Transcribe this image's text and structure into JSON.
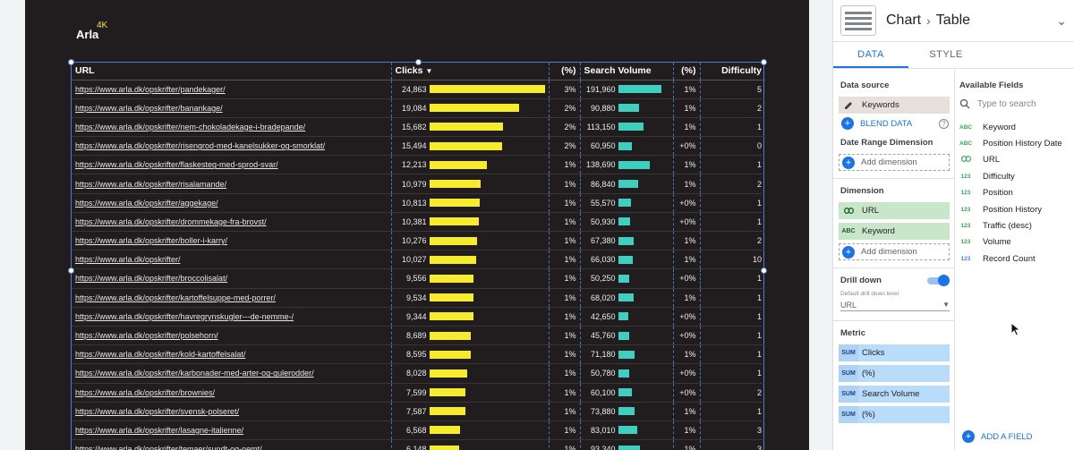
{
  "report": {
    "brand": "Arla",
    "brand_sup": "4K"
  },
  "table": {
    "headers": {
      "url": "URL",
      "clicks": "Clicks",
      "clicks_pct": "(%)",
      "search_volume": "Search Volume",
      "sv_pct": "(%)",
      "difficulty": "Difficulty"
    },
    "rows": [
      {
        "url": "https://www.arla.dk/opskrifter/pandekager/",
        "clicks": "24,863",
        "clicks_bar": 1.0,
        "clicks_pct": "3%",
        "search_volume": "191,960",
        "sv_bar": 1.0,
        "sv_pct": "1%",
        "difficulty": "5"
      },
      {
        "url": "https://www.arla.dk/opskrifter/banankage/",
        "clicks": "19,084",
        "clicks_bar": 0.77,
        "clicks_pct": "2%",
        "search_volume": "90,880",
        "sv_bar": 0.47,
        "sv_pct": "1%",
        "difficulty": "2"
      },
      {
        "url": "https://www.arla.dk/opskrifter/nem-chokoladekage-i-bradepande/",
        "clicks": "15,682",
        "clicks_bar": 0.63,
        "clicks_pct": "2%",
        "search_volume": "113,150",
        "sv_bar": 0.59,
        "sv_pct": "1%",
        "difficulty": "1"
      },
      {
        "url": "https://www.arla.dk/opskrifter/risengrod-med-kanelsukker-og-smorklat/",
        "clicks": "15,494",
        "clicks_bar": 0.62,
        "clicks_pct": "2%",
        "search_volume": "60,950",
        "sv_bar": 0.32,
        "sv_pct": "+0%",
        "difficulty": "0"
      },
      {
        "url": "https://www.arla.dk/opskrifter/flaskesteg-med-sprod-svar/",
        "clicks": "12,213",
        "clicks_bar": 0.49,
        "clicks_pct": "1%",
        "search_volume": "138,690",
        "sv_bar": 0.72,
        "sv_pct": "1%",
        "difficulty": "1"
      },
      {
        "url": "https://www.arla.dk/opskrifter/risalamande/",
        "clicks": "10,979",
        "clicks_bar": 0.44,
        "clicks_pct": "1%",
        "search_volume": "86,840",
        "sv_bar": 0.45,
        "sv_pct": "1%",
        "difficulty": "2"
      },
      {
        "url": "https://www.arla.dk/opskrifter/aggekage/",
        "clicks": "10,813",
        "clicks_bar": 0.43,
        "clicks_pct": "1%",
        "search_volume": "55,570",
        "sv_bar": 0.29,
        "sv_pct": "+0%",
        "difficulty": "1"
      },
      {
        "url": "https://www.arla.dk/opskrifter/drommekage-fra-brovst/",
        "clicks": "10,381",
        "clicks_bar": 0.42,
        "clicks_pct": "1%",
        "search_volume": "50,930",
        "sv_bar": 0.27,
        "sv_pct": "+0%",
        "difficulty": "1"
      },
      {
        "url": "https://www.arla.dk/opskrifter/boller-i-karry/",
        "clicks": "10,276",
        "clicks_bar": 0.41,
        "clicks_pct": "1%",
        "search_volume": "67,380",
        "sv_bar": 0.35,
        "sv_pct": "1%",
        "difficulty": "2"
      },
      {
        "url": "https://www.arla.dk/opskrifter/",
        "clicks": "10,027",
        "clicks_bar": 0.4,
        "clicks_pct": "1%",
        "search_volume": "66,030",
        "sv_bar": 0.34,
        "sv_pct": "1%",
        "difficulty": "10"
      },
      {
        "url": "https://www.arla.dk/opskrifter/broccolisalat/",
        "clicks": "9,556",
        "clicks_bar": 0.38,
        "clicks_pct": "1%",
        "search_volume": "50,250",
        "sv_bar": 0.26,
        "sv_pct": "+0%",
        "difficulty": "1"
      },
      {
        "url": "https://www.arla.dk/opskrifter/kartoffelsuppe-med-porrer/",
        "clicks": "9,534",
        "clicks_bar": 0.38,
        "clicks_pct": "1%",
        "search_volume": "68,020",
        "sv_bar": 0.35,
        "sv_pct": "1%",
        "difficulty": "1"
      },
      {
        "url": "https://www.arla.dk/opskrifter/havregrynskugler---de-nemme-/",
        "clicks": "9,344",
        "clicks_bar": 0.38,
        "clicks_pct": "1%",
        "search_volume": "42,650",
        "sv_bar": 0.22,
        "sv_pct": "+0%",
        "difficulty": "1"
      },
      {
        "url": "https://www.arla.dk/opskrifter/polsehorn/",
        "clicks": "8,689",
        "clicks_bar": 0.35,
        "clicks_pct": "1%",
        "search_volume": "45,760",
        "sv_bar": 0.24,
        "sv_pct": "+0%",
        "difficulty": "1"
      },
      {
        "url": "https://www.arla.dk/opskrifter/kold-kartoffelsalat/",
        "clicks": "8,595",
        "clicks_bar": 0.35,
        "clicks_pct": "1%",
        "search_volume": "71,180",
        "sv_bar": 0.37,
        "sv_pct": "1%",
        "difficulty": "1"
      },
      {
        "url": "https://www.arla.dk/opskrifter/karbonader-med-arter-og-gulerodder/",
        "clicks": "8,028",
        "clicks_bar": 0.32,
        "clicks_pct": "1%",
        "search_volume": "50,780",
        "sv_bar": 0.26,
        "sv_pct": "+0%",
        "difficulty": "1"
      },
      {
        "url": "https://www.arla.dk/opskrifter/brownies/",
        "clicks": "7,599",
        "clicks_bar": 0.31,
        "clicks_pct": "1%",
        "search_volume": "60,100",
        "sv_bar": 0.31,
        "sv_pct": "+0%",
        "difficulty": "2"
      },
      {
        "url": "https://www.arla.dk/opskrifter/svensk-polseret/",
        "clicks": "7,587",
        "clicks_bar": 0.31,
        "clicks_pct": "1%",
        "search_volume": "73,880",
        "sv_bar": 0.38,
        "sv_pct": "1%",
        "difficulty": "1"
      },
      {
        "url": "https://www.arla.dk/opskrifter/lasagne-italienne/",
        "clicks": "6,568",
        "clicks_bar": 0.26,
        "clicks_pct": "1%",
        "search_volume": "83,010",
        "sv_bar": 0.43,
        "sv_pct": "1%",
        "difficulty": "3"
      },
      {
        "url": "https://www.arla.dk/opskrifter/temaer/sundt-og-nemt/",
        "clicks": "6,148",
        "clicks_bar": 0.25,
        "clicks_pct": "1%",
        "search_volume": "93,340",
        "sv_bar": 0.49,
        "sv_pct": "1%",
        "difficulty": "3"
      }
    ]
  },
  "panel": {
    "crumb_chart": "Chart",
    "crumb_type": "Table",
    "tabs": {
      "data": "DATA",
      "style": "STYLE"
    },
    "data_source_title": "Data source",
    "data_source": "Keywords",
    "blend": "BLEND DATA",
    "date_range_title": "Date Range Dimension",
    "add_dimension": "Add dimension",
    "dimension_title": "Dimension",
    "dimensions": [
      "URL",
      "Keyword"
    ],
    "drill_down": "Drill down",
    "drill_level_label": "Default drill down level",
    "drill_level_value": "URL",
    "metric_title": "Metric",
    "metric_tag": "SUM",
    "metrics": [
      "Clicks",
      "(%)",
      "Search Volume",
      "(%)"
    ],
    "available_title": "Available Fields",
    "search_placeholder": "Type to search",
    "fields": [
      {
        "type": "ABC",
        "name": "Keyword"
      },
      {
        "type": "ABC",
        "name": "Position History Date"
      },
      {
        "type": "link",
        "name": "URL"
      },
      {
        "type": "123",
        "name": "Difficulty"
      },
      {
        "type": "123",
        "name": "Position"
      },
      {
        "type": "123",
        "name": "Position History"
      },
      {
        "type": "123",
        "name": "Traffic (desc)"
      },
      {
        "type": "123",
        "name": "Volume"
      },
      {
        "type": "123b",
        "name": "Record Count"
      }
    ],
    "add_field": "ADD A FIELD"
  },
  "colors": {
    "report_bg": "#211d1f",
    "clicks_bar": "#f6ec2b",
    "sv_bar": "#3fcfc0",
    "accent": "#1a73e8"
  }
}
